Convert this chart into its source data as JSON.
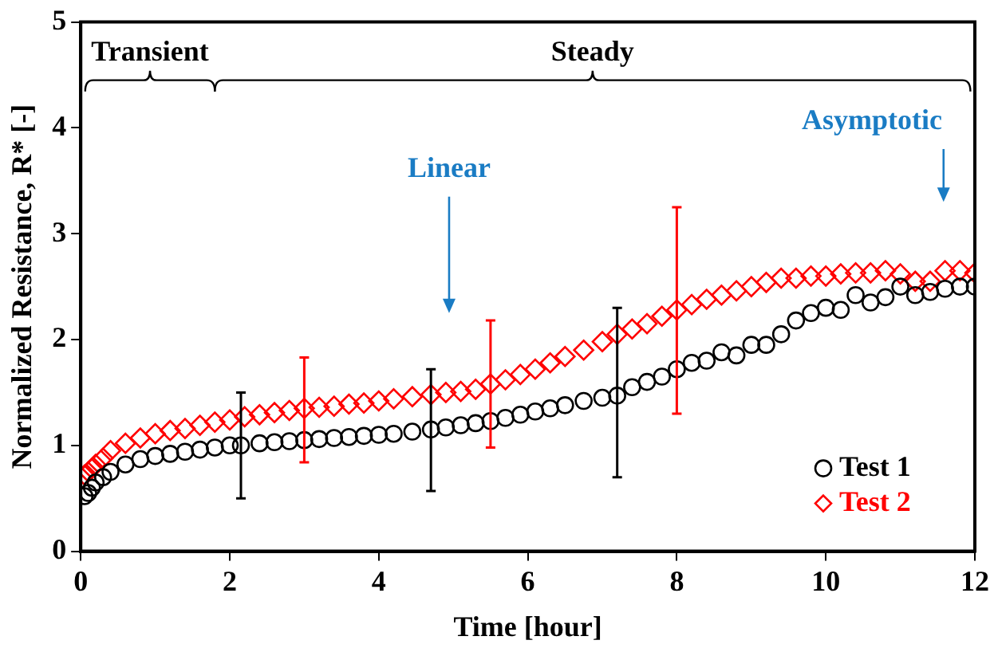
{
  "chart_data": {
    "type": "scatter",
    "xlabel": "Time [hour]",
    "ylabel": "Normalized Resistance, R* [-]",
    "xlim": [
      0,
      12
    ],
    "xticks": [
      0,
      2,
      4,
      6,
      8,
      10,
      12
    ],
    "ylim": [
      0,
      5
    ],
    "yticks": [
      0,
      1,
      2,
      3,
      4,
      5
    ],
    "grid": false,
    "legend": "bottom right",
    "series": [
      {
        "name": "Test 1",
        "color": "#000000",
        "marker": "circle",
        "x": [
          0.05,
          0.1,
          0.15,
          0.2,
          0.3,
          0.4,
          0.6,
          0.8,
          1.0,
          1.2,
          1.4,
          1.6,
          1.8,
          2.0,
          2.15,
          2.4,
          2.6,
          2.8,
          3.0,
          3.2,
          3.4,
          3.6,
          3.8,
          4.0,
          4.2,
          4.45,
          4.7,
          4.9,
          5.1,
          5.3,
          5.5,
          5.7,
          5.9,
          6.1,
          6.3,
          6.5,
          6.75,
          7.0,
          7.2,
          7.4,
          7.6,
          7.8,
          8.0,
          8.2,
          8.4,
          8.6,
          8.8,
          9.0,
          9.2,
          9.4,
          9.6,
          9.8,
          10.0,
          10.2,
          10.4,
          10.6,
          10.8,
          11.0,
          11.2,
          11.4,
          11.6,
          11.8,
          12.0
        ],
        "values": [
          0.52,
          0.55,
          0.6,
          0.65,
          0.7,
          0.75,
          0.82,
          0.87,
          0.9,
          0.92,
          0.94,
          0.96,
          0.98,
          1.0,
          1.0,
          1.02,
          1.03,
          1.04,
          1.05,
          1.06,
          1.07,
          1.08,
          1.09,
          1.1,
          1.11,
          1.13,
          1.15,
          1.17,
          1.19,
          1.21,
          1.23,
          1.26,
          1.29,
          1.32,
          1.35,
          1.38,
          1.42,
          1.45,
          1.47,
          1.55,
          1.6,
          1.65,
          1.72,
          1.78,
          1.8,
          1.88,
          1.85,
          1.95,
          1.95,
          2.05,
          2.18,
          2.25,
          2.3,
          2.28,
          2.42,
          2.35,
          2.4,
          2.5,
          2.42,
          2.45,
          2.48,
          2.5,
          2.5
        ],
        "errors": [
          null,
          null,
          null,
          null,
          null,
          null,
          null,
          null,
          null,
          null,
          null,
          null,
          null,
          null,
          [
            0.5,
            1.5
          ],
          null,
          null,
          null,
          null,
          null,
          null,
          null,
          null,
          null,
          null,
          null,
          [
            0.57,
            1.72
          ],
          null,
          null,
          null,
          null,
          null,
          null,
          null,
          null,
          null,
          null,
          null,
          [
            0.7,
            2.3
          ],
          null,
          null,
          null,
          null,
          null,
          null,
          null,
          null,
          null,
          null,
          null,
          null,
          null,
          null,
          null,
          null,
          null,
          null,
          null,
          null,
          null,
          null,
          null,
          null
        ]
      },
      {
        "name": "Test 2",
        "color": "#ff0000",
        "marker": "diamond",
        "x": [
          0.05,
          0.1,
          0.15,
          0.2,
          0.3,
          0.4,
          0.6,
          0.8,
          1.0,
          1.2,
          1.4,
          1.6,
          1.8,
          2.0,
          2.2,
          2.4,
          2.6,
          2.8,
          3.0,
          3.2,
          3.4,
          3.6,
          3.8,
          4.0,
          4.2,
          4.45,
          4.7,
          4.9,
          5.1,
          5.3,
          5.5,
          5.7,
          5.9,
          6.1,
          6.3,
          6.5,
          6.75,
          7.0,
          7.2,
          7.4,
          7.6,
          7.8,
          8.0,
          8.2,
          8.4,
          8.6,
          8.8,
          9.0,
          9.2,
          9.4,
          9.6,
          9.8,
          10.0,
          10.2,
          10.4,
          10.6,
          10.8,
          11.0,
          11.2,
          11.4,
          11.6,
          11.8,
          12.0
        ],
        "values": [
          0.72,
          0.75,
          0.78,
          0.82,
          0.88,
          0.95,
          1.02,
          1.07,
          1.11,
          1.14,
          1.16,
          1.19,
          1.22,
          1.24,
          1.27,
          1.29,
          1.31,
          1.33,
          1.35,
          1.36,
          1.37,
          1.39,
          1.4,
          1.42,
          1.44,
          1.46,
          1.48,
          1.5,
          1.51,
          1.53,
          1.58,
          1.62,
          1.67,
          1.72,
          1.78,
          1.84,
          1.9,
          1.98,
          2.05,
          2.1,
          2.15,
          2.22,
          2.28,
          2.33,
          2.38,
          2.42,
          2.46,
          2.5,
          2.54,
          2.58,
          2.58,
          2.6,
          2.6,
          2.62,
          2.63,
          2.63,
          2.65,
          2.62,
          2.55,
          2.55,
          2.65,
          2.65,
          2.63
        ],
        "errors": [
          null,
          null,
          null,
          null,
          null,
          null,
          null,
          null,
          null,
          null,
          null,
          null,
          null,
          null,
          null,
          null,
          null,
          null,
          [
            0.84,
            1.83
          ],
          null,
          null,
          null,
          null,
          null,
          null,
          null,
          null,
          null,
          null,
          null,
          [
            0.98,
            2.18
          ],
          null,
          null,
          null,
          null,
          null,
          null,
          null,
          null,
          null,
          null,
          null,
          [
            1.3,
            3.25
          ],
          null,
          null,
          null,
          null,
          null,
          null,
          null,
          null,
          null,
          null,
          null,
          null,
          null,
          null,
          null,
          null,
          null,
          null,
          null,
          null
        ]
      }
    ],
    "annotations": [
      "Transient",
      "Steady",
      "Linear",
      "Asymptotic"
    ]
  }
}
